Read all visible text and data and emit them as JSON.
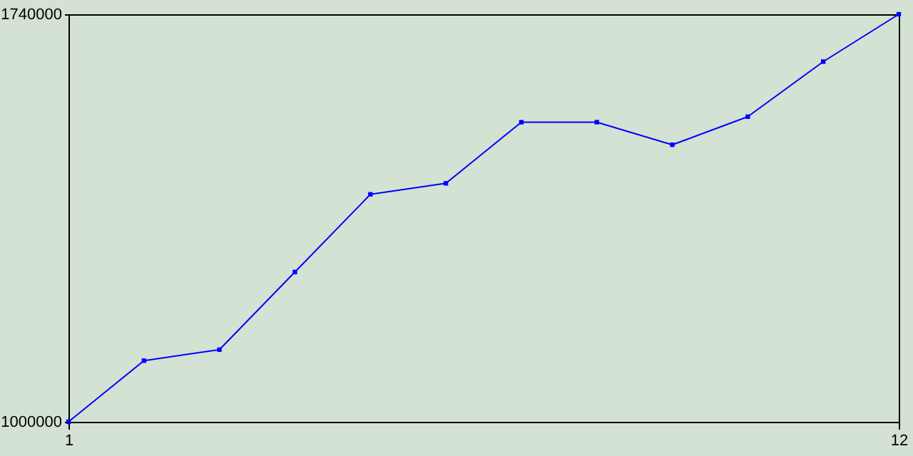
{
  "chart_data": {
    "type": "line",
    "x": [
      1,
      2,
      3,
      4,
      5,
      6,
      7,
      8,
      9,
      10,
      11,
      12
    ],
    "series": [
      {
        "color": "#0000ff",
        "values": [
          1000000,
          1111000,
          1131000,
          1272000,
          1413000,
          1433000,
          1544000,
          1544000,
          1503000,
          1554000,
          1654000,
          1740000
        ]
      }
    ],
    "xlim": [
      1,
      12
    ],
    "xticks": [
      1,
      12
    ],
    "ylim": [
      1000000,
      1740000
    ],
    "yticks": [
      1000000,
      1740000
    ],
    "grid": false,
    "marker": "square",
    "line_style": "solid"
  }
}
